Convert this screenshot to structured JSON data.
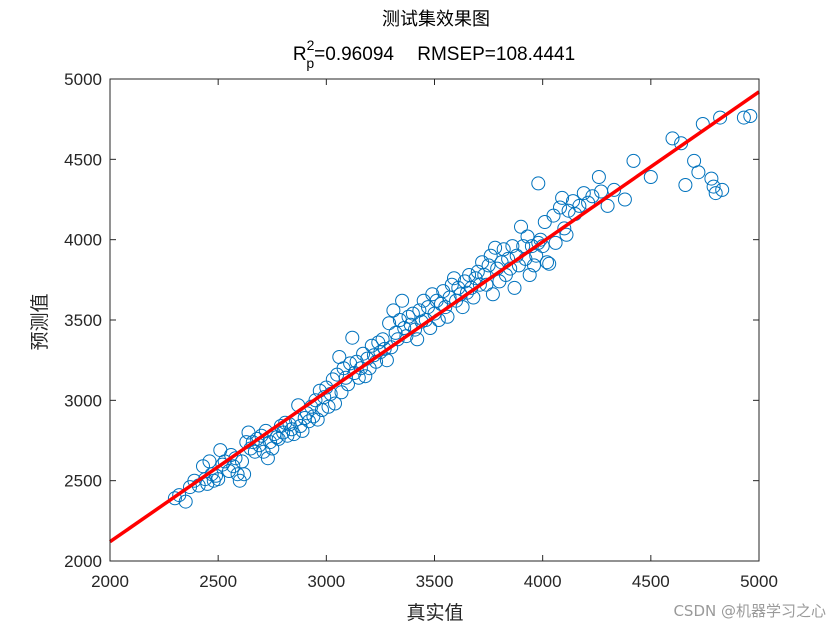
{
  "chart_data": {
    "type": "scatter",
    "title": "测试集效果图",
    "subtitle": {
      "r_label": "R",
      "r_sup": "2",
      "r_sub": "p",
      "r_value": "=0.96094",
      "rmsep": "RMSEP=108.4441"
    },
    "xlabel": "真实值",
    "ylabel": "预测值",
    "xlim": [
      2000,
      5000
    ],
    "ylim": [
      2000,
      5000
    ],
    "xticks": [
      2000,
      2500,
      3000,
      3500,
      4000,
      4500,
      5000
    ],
    "yticks": [
      2000,
      2500,
      3000,
      3500,
      4000,
      4500,
      5000
    ],
    "grid": false,
    "marker_color": "#0072BD",
    "fit_color": "#FF0000",
    "fit_line": {
      "x": [
        2000,
        5000
      ],
      "y": [
        2120,
        4920
      ]
    },
    "points": [
      [
        2300,
        2390
      ],
      [
        2320,
        2410
      ],
      [
        2350,
        2370
      ],
      [
        2370,
        2460
      ],
      [
        2390,
        2500
      ],
      [
        2410,
        2470
      ],
      [
        2430,
        2590
      ],
      [
        2440,
        2510
      ],
      [
        2450,
        2480
      ],
      [
        2460,
        2620
      ],
      [
        2470,
        2540
      ],
      [
        2480,
        2500
      ],
      [
        2490,
        2530
      ],
      [
        2500,
        2510
      ],
      [
        2510,
        2690
      ],
      [
        2520,
        2600
      ],
      [
        2530,
        2620
      ],
      [
        2550,
        2560
      ],
      [
        2560,
        2660
      ],
      [
        2570,
        2590
      ],
      [
        2580,
        2640
      ],
      [
        2590,
        2540
      ],
      [
        2600,
        2500
      ],
      [
        2610,
        2620
      ],
      [
        2620,
        2540
      ],
      [
        2630,
        2740
      ],
      [
        2640,
        2800
      ],
      [
        2650,
        2700
      ],
      [
        2660,
        2740
      ],
      [
        2670,
        2680
      ],
      [
        2680,
        2760
      ],
      [
        2690,
        2720
      ],
      [
        2700,
        2780
      ],
      [
        2710,
        2680
      ],
      [
        2720,
        2810
      ],
      [
        2730,
        2640
      ],
      [
        2740,
        2740
      ],
      [
        2750,
        2700
      ],
      [
        2760,
        2790
      ],
      [
        2770,
        2770
      ],
      [
        2780,
        2760
      ],
      [
        2790,
        2840
      ],
      [
        2800,
        2800
      ],
      [
        2810,
        2860
      ],
      [
        2820,
        2780
      ],
      [
        2830,
        2850
      ],
      [
        2840,
        2820
      ],
      [
        2850,
        2790
      ],
      [
        2860,
        2880
      ],
      [
        2870,
        2970
      ],
      [
        2880,
        2840
      ],
      [
        2890,
        2810
      ],
      [
        2900,
        2890
      ],
      [
        2910,
        2920
      ],
      [
        2920,
        2870
      ],
      [
        2930,
        2960
      ],
      [
        2940,
        2900
      ],
      [
        2950,
        3000
      ],
      [
        2960,
        2880
      ],
      [
        2970,
        3060
      ],
      [
        2980,
        2940
      ],
      [
        2990,
        3020
      ],
      [
        3000,
        3080
      ],
      [
        3010,
        2960
      ],
      [
        3020,
        3040
      ],
      [
        3030,
        3130
      ],
      [
        3040,
        2980
      ],
      [
        3050,
        3160
      ],
      [
        3060,
        3270
      ],
      [
        3070,
        3050
      ],
      [
        3080,
        3200
      ],
      [
        3090,
        3140
      ],
      [
        3100,
        3100
      ],
      [
        3110,
        3230
      ],
      [
        3120,
        3390
      ],
      [
        3130,
        3170
      ],
      [
        3140,
        3240
      ],
      [
        3150,
        3140
      ],
      [
        3160,
        3200
      ],
      [
        3170,
        3290
      ],
      [
        3180,
        3150
      ],
      [
        3190,
        3260
      ],
      [
        3200,
        3200
      ],
      [
        3210,
        3340
      ],
      [
        3220,
        3280
      ],
      [
        3230,
        3240
      ],
      [
        3240,
        3360
      ],
      [
        3250,
        3300
      ],
      [
        3260,
        3380
      ],
      [
        3270,
        3320
      ],
      [
        3280,
        3250
      ],
      [
        3290,
        3480
      ],
      [
        3300,
        3330
      ],
      [
        3310,
        3560
      ],
      [
        3320,
        3420
      ],
      [
        3330,
        3380
      ],
      [
        3340,
        3500
      ],
      [
        3350,
        3620
      ],
      [
        3360,
        3450
      ],
      [
        3370,
        3400
      ],
      [
        3380,
        3520
      ],
      [
        3390,
        3470
      ],
      [
        3400,
        3540
      ],
      [
        3410,
        3440
      ],
      [
        3420,
        3380
      ],
      [
        3430,
        3560
      ],
      [
        3440,
        3490
      ],
      [
        3450,
        3620
      ],
      [
        3460,
        3500
      ],
      [
        3470,
        3580
      ],
      [
        3480,
        3450
      ],
      [
        3490,
        3660
      ],
      [
        3500,
        3540
      ],
      [
        3510,
        3620
      ],
      [
        3520,
        3500
      ],
      [
        3530,
        3600
      ],
      [
        3540,
        3680
      ],
      [
        3550,
        3580
      ],
      [
        3560,
        3520
      ],
      [
        3570,
        3640
      ],
      [
        3580,
        3720
      ],
      [
        3590,
        3760
      ],
      [
        3600,
        3620
      ],
      [
        3610,
        3700
      ],
      [
        3620,
        3660
      ],
      [
        3630,
        3580
      ],
      [
        3640,
        3740
      ],
      [
        3650,
        3670
      ],
      [
        3660,
        3780
      ],
      [
        3670,
        3700
      ],
      [
        3680,
        3640
      ],
      [
        3690,
        3760
      ],
      [
        3700,
        3800
      ],
      [
        3710,
        3720
      ],
      [
        3720,
        3860
      ],
      [
        3730,
        3780
      ],
      [
        3740,
        3720
      ],
      [
        3750,
        3840
      ],
      [
        3760,
        3900
      ],
      [
        3770,
        3660
      ],
      [
        3780,
        3950
      ],
      [
        3790,
        3820
      ],
      [
        3800,
        3740
      ],
      [
        3810,
        3860
      ],
      [
        3820,
        3940
      ],
      [
        3830,
        3780
      ],
      [
        3840,
        3880
      ],
      [
        3850,
        3820
      ],
      [
        3860,
        3960
      ],
      [
        3870,
        3700
      ],
      [
        3880,
        3900
      ],
      [
        3890,
        3840
      ],
      [
        3900,
        4080
      ],
      [
        3910,
        3960
      ],
      [
        3920,
        3880
      ],
      [
        3930,
        4020
      ],
      [
        3940,
        3780
      ],
      [
        3950,
        3960
      ],
      [
        3960,
        3840
      ],
      [
        3970,
        3900
      ],
      [
        3980,
        4350
      ],
      [
        3990,
        4000
      ],
      [
        4000,
        3960
      ],
      [
        4010,
        4110
      ],
      [
        4020,
        3860
      ],
      [
        4030,
        3850
      ],
      [
        4050,
        4150
      ],
      [
        4060,
        3980
      ],
      [
        4080,
        4200
      ],
      [
        4090,
        4260
      ],
      [
        4100,
        4070
      ],
      [
        4110,
        4030
      ],
      [
        4120,
        4180
      ],
      [
        4140,
        4240
      ],
      [
        4150,
        4160
      ],
      [
        4170,
        4210
      ],
      [
        4190,
        4290
      ],
      [
        4210,
        4230
      ],
      [
        4230,
        4270
      ],
      [
        4260,
        4390
      ],
      [
        4270,
        4300
      ],
      [
        4300,
        4210
      ],
      [
        4330,
        4310
      ],
      [
        4380,
        4250
      ],
      [
        4420,
        4490
      ],
      [
        4500,
        4390
      ],
      [
        4600,
        4630
      ],
      [
        4640,
        4600
      ],
      [
        4660,
        4340
      ],
      [
        4700,
        4490
      ],
      [
        4720,
        4420
      ],
      [
        4740,
        4720
      ],
      [
        4780,
        4380
      ],
      [
        4790,
        4330
      ],
      [
        4800,
        4290
      ],
      [
        4820,
        4760
      ],
      [
        4830,
        4310
      ],
      [
        4930,
        4760
      ],
      [
        4960,
        4770
      ],
      [
        3980,
        3980
      ]
    ]
  },
  "watermark": "CSDN @机器学习之心"
}
